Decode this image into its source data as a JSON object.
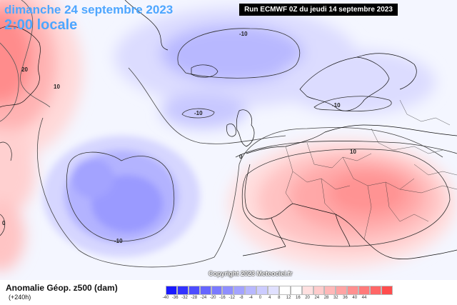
{
  "header": {
    "date": "dimanche 24 septembre 2023",
    "time": "2:00 locale",
    "run": "Run ECMWF 0Z du jeudi 14 septembre 2023"
  },
  "copyright": "Copyright 2023 Meteociel.fr",
  "legend": {
    "variable": "Anomalie Géop. z500 (dam)",
    "lead": "(+240h)",
    "colors": [
      "#1a1aff",
      "#3333ff",
      "#4d4dff",
      "#6666ff",
      "#7a7aff",
      "#8f8fff",
      "#a3a3ff",
      "#b8b8ff",
      "#ccccff",
      "#e0e0ff",
      "#ffffff",
      "#ffffff",
      "#ffe0e0",
      "#ffcccc",
      "#ffb8b8",
      "#ffa3a3",
      "#ff8f8f",
      "#ff7a7a",
      "#ff6666",
      "#ff4d4d"
    ],
    "ticks": [
      "-40",
      "-36",
      "-32",
      "-28",
      "-24",
      "-20",
      "-16",
      "-12",
      "-8",
      "-4",
      "0",
      "4",
      "8",
      "12",
      "16",
      "20",
      "24",
      "28",
      "32",
      "36",
      "40",
      "44"
    ]
  },
  "contour_labels": [
    {
      "id": "iso-w-20",
      "text": "20"
    },
    {
      "id": "iso-w-10",
      "text": "10"
    },
    {
      "id": "iso-n-10a",
      "text": "-10"
    },
    {
      "id": "iso-n-10b",
      "text": "-10"
    },
    {
      "id": "iso-n-10c",
      "text": "-10"
    },
    {
      "id": "iso-scan-10",
      "text": "-10"
    },
    {
      "id": "iso-eu-10",
      "text": "10"
    },
    {
      "id": "iso-zero-a",
      "text": "0"
    },
    {
      "id": "iso-zero-b",
      "text": "0"
    }
  ]
}
